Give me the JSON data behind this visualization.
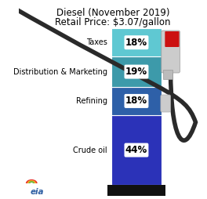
{
  "title_line1": "Diesel (November 2019)",
  "title_line2": "Retail Price: $3.07/gallon",
  "categories": [
    "Taxes",
    "Distribution & Marketing",
    "Refining",
    "Crude oil"
  ],
  "percentages": [
    18,
    19,
    18,
    44
  ],
  "colors": [
    "#5fc8d2",
    "#3d9aaa",
    "#2e60a8",
    "#2b32b8"
  ],
  "bg_color": "#ffffff",
  "text_color": "#000000",
  "title_fontsize": 8.5,
  "label_pct_fontsize": 8.5,
  "label_cat_fontsize": 7.0
}
